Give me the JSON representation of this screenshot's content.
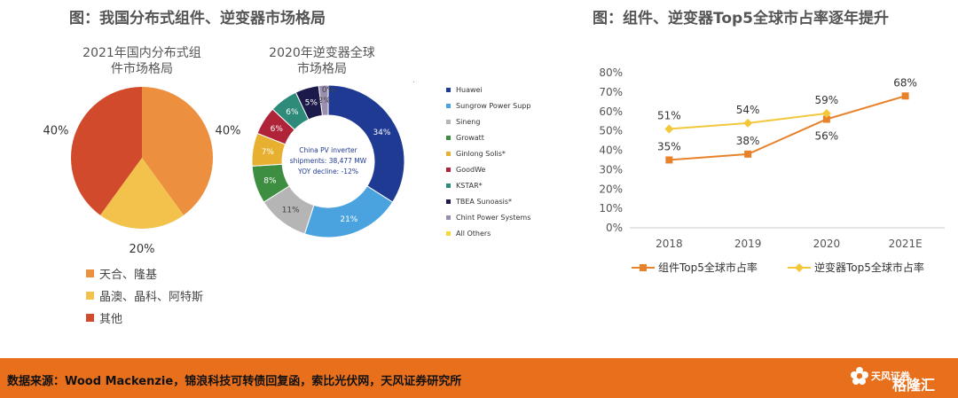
{
  "left_title": "图：我国分布式组件、逆变器市场格局",
  "right_title": "图：组件、逆变器Top5全球市占率逐年提升",
  "footer": {
    "source": "数据来源：Wood Mackenzie，锦浪科技可转债回复函，索比光伏网，天风证券研究所",
    "brand": "天风证券",
    "watermark": "格隆汇"
  },
  "colors": {
    "orange": "#e8701c",
    "pie_orange": "#ec8f3f",
    "pie_yellow": "#f3c24c",
    "pie_red": "#d04a2b"
  },
  "chart_data": [
    {
      "type": "pie",
      "title": "2021年国内分布式组件市场格局",
      "title_lines": [
        "2021年国内分布式组",
        "件市场格局"
      ],
      "categories": [
        "天合、隆基",
        "晶澳、晶科、阿特斯",
        "其他"
      ],
      "values": [
        40,
        20,
        40
      ],
      "labels": [
        "40%",
        "20%",
        "40%"
      ],
      "colors": [
        "#ec8f3f",
        "#f3c24c",
        "#d04a2b"
      ]
    },
    {
      "type": "pie",
      "title": "2020年逆变器全球市场格局",
      "title_lines": [
        "2020年逆变器全球",
        "市场格局"
      ],
      "center_lines": [
        "China PV inverter",
        "shipments: 38,477 MW",
        "YOY decline: -12%"
      ],
      "categories": [
        "Huawei",
        "Sungrow Power Supp",
        "Sineng",
        "Growatt",
        "Ginlong Solis*",
        "GoodWe",
        "KSTAR*",
        "TBEA Sunoasis*",
        "Chint Power Systems",
        "All Others"
      ],
      "values": [
        34,
        21,
        11,
        8,
        7,
        6,
        6,
        5,
        2,
        0
      ],
      "labels": [
        "34%",
        "21%",
        "11%",
        "8%",
        "7%",
        "6%",
        "6%",
        "5%",
        "2%",
        "0%"
      ],
      "colors": [
        "#1f3a93",
        "#4aa3df",
        "#b5b5b5",
        "#3e8e41",
        "#e8b030",
        "#b0243a",
        "#2e8b7a",
        "#1c1a4a",
        "#9b8fb0",
        "#f3d83a"
      ]
    },
    {
      "type": "line",
      "title": "",
      "x": [
        "2018",
        "2019",
        "2020",
        "2021E"
      ],
      "ylim": [
        0,
        80
      ],
      "yticks": [
        "0%",
        "10%",
        "20%",
        "30%",
        "40%",
        "50%",
        "60%",
        "70%",
        "80%"
      ],
      "series": [
        {
          "name": "组件Top5全球市占率",
          "values": [
            35,
            38,
            56,
            68
          ],
          "labels": [
            "35%",
            "38%",
            "56%",
            "68%"
          ],
          "color": "#e8822a"
        },
        {
          "name": "逆变器Top5全球市占率",
          "values": [
            51,
            54,
            59,
            null
          ],
          "labels": [
            "51%",
            "54%",
            "59%",
            ""
          ],
          "color": "#f2c83a"
        }
      ]
    }
  ]
}
